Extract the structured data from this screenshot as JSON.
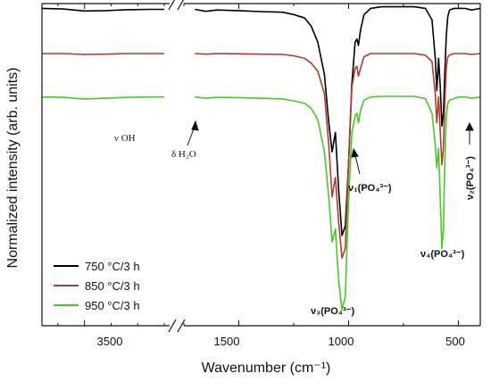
{
  "chart_data": {
    "type": "line",
    "xlabel": "Wavenumber (cm⁻¹)",
    "ylabel": "Normalized intensity (arb. units)",
    "x_reversed": true,
    "x_break": [
      2700,
      1750
    ],
    "xlim": [
      3900,
      400
    ],
    "ylim": [
      0,
      1
    ],
    "x_tick_labels": [
      "3500",
      "1500",
      "1000",
      "500"
    ],
    "x_tick_values": [
      3500,
      1500,
      1000,
      500
    ],
    "annotations": {
      "v_oh": "ν OH",
      "d_h2o": "δ H₂O",
      "v3": "ν₃(PO₄³⁻)",
      "v1": "ν₁(PO₄³⁻)",
      "v4": "ν₄(PO₄³⁻)",
      "v2": "ν₂(PO₄³⁻)"
    },
    "series": [
      {
        "name": "750 °C/3 h",
        "color": "#000000",
        "x": [
          3900,
          3700,
          3500,
          3300,
          3100,
          2900,
          2750,
          1700,
          1650,
          1600,
          1500,
          1400,
          1300,
          1250,
          1200,
          1170,
          1140,
          1110,
          1090,
          1075,
          1060,
          1045,
          1030,
          1015,
          1000,
          985,
          970,
          962,
          955,
          945,
          930,
          900,
          850,
          800,
          750,
          700,
          650,
          620,
          605,
          598,
          590,
          582,
          575,
          568,
          562,
          555,
          548,
          540,
          520,
          500,
          470,
          440,
          400
        ],
        "y": [
          0.985,
          0.983,
          0.977,
          0.978,
          0.981,
          0.982,
          0.982,
          0.982,
          0.976,
          0.98,
          0.978,
          0.975,
          0.973,
          0.966,
          0.955,
          0.93,
          0.88,
          0.78,
          0.63,
          0.54,
          0.6,
          0.42,
          0.28,
          0.31,
          0.5,
          0.75,
          0.88,
          0.89,
          0.87,
          0.92,
          0.965,
          0.985,
          0.99,
          0.99,
          0.99,
          0.99,
          0.985,
          0.95,
          0.83,
          0.73,
          0.83,
          0.74,
          0.62,
          0.66,
          0.78,
          0.9,
          0.96,
          0.98,
          0.985,
          0.985,
          0.985,
          0.98,
          0.985
        ]
      },
      {
        "name": "850 °C/3 h",
        "color": "#b03a2e",
        "x": [
          3900,
          3700,
          3500,
          3300,
          3100,
          2900,
          2750,
          1700,
          1650,
          1600,
          1500,
          1400,
          1300,
          1250,
          1200,
          1170,
          1140,
          1110,
          1090,
          1075,
          1060,
          1045,
          1030,
          1015,
          1000,
          985,
          970,
          962,
          955,
          945,
          930,
          900,
          850,
          800,
          750,
          700,
          650,
          620,
          605,
          598,
          590,
          582,
          575,
          568,
          562,
          555,
          548,
          540,
          520,
          500,
          470,
          440,
          400
        ],
        "y": [
          0.845,
          0.845,
          0.842,
          0.843,
          0.845,
          0.845,
          0.845,
          0.845,
          0.843,
          0.845,
          0.844,
          0.843,
          0.842,
          0.838,
          0.83,
          0.815,
          0.79,
          0.72,
          0.56,
          0.4,
          0.46,
          0.32,
          0.21,
          0.24,
          0.5,
          0.74,
          0.8,
          0.805,
          0.775,
          0.8,
          0.835,
          0.845,
          0.845,
          0.845,
          0.845,
          0.845,
          0.84,
          0.82,
          0.72,
          0.63,
          0.71,
          0.6,
          0.5,
          0.55,
          0.69,
          0.8,
          0.835,
          0.84,
          0.845,
          0.845,
          0.845,
          0.842,
          0.845
        ]
      },
      {
        "name": "950 °C/3 h",
        "color": "#44cc22",
        "x": [
          3900,
          3700,
          3500,
          3300,
          3100,
          2900,
          2750,
          1700,
          1650,
          1600,
          1500,
          1400,
          1300,
          1250,
          1200,
          1170,
          1140,
          1110,
          1090,
          1075,
          1060,
          1045,
          1030,
          1015,
          1000,
          985,
          970,
          962,
          955,
          945,
          930,
          900,
          850,
          800,
          750,
          700,
          650,
          620,
          605,
          598,
          590,
          582,
          575,
          568,
          562,
          555,
          548,
          540,
          520,
          500,
          470,
          440,
          400
        ],
        "y": [
          0.71,
          0.709,
          0.704,
          0.706,
          0.709,
          0.71,
          0.71,
          0.71,
          0.706,
          0.709,
          0.708,
          0.706,
          0.704,
          0.698,
          0.69,
          0.675,
          0.64,
          0.54,
          0.4,
          0.26,
          0.3,
          0.14,
          0.05,
          0.09,
          0.38,
          0.6,
          0.65,
          0.66,
          0.63,
          0.67,
          0.7,
          0.71,
          0.712,
          0.712,
          0.712,
          0.712,
          0.705,
          0.66,
          0.56,
          0.49,
          0.55,
          0.39,
          0.24,
          0.3,
          0.5,
          0.65,
          0.69,
          0.7,
          0.705,
          0.71,
          0.71,
          0.706,
          0.71
        ]
      }
    ]
  }
}
